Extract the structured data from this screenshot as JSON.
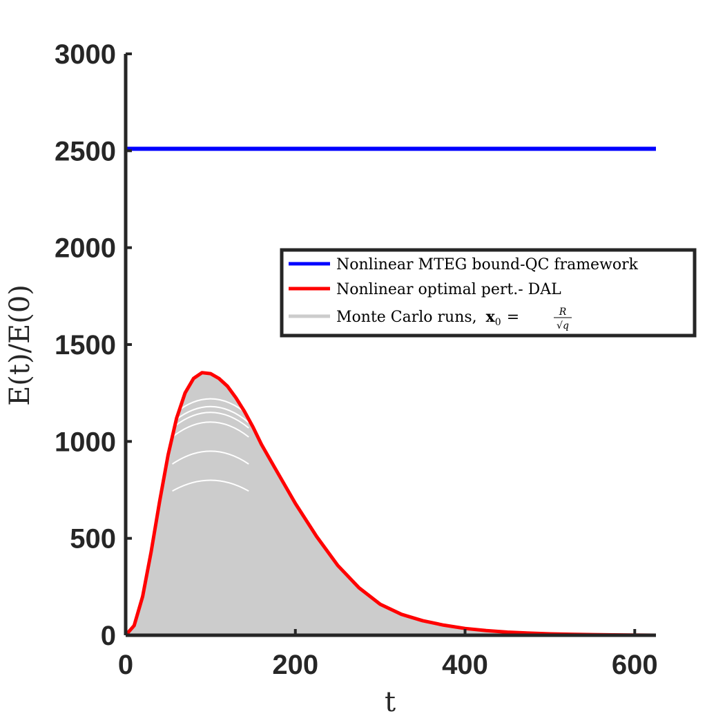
{
  "chart_data": {
    "type": "line",
    "xlabel": "t",
    "ylabel": "E(t)/E(0)",
    "xlim": [
      0,
      625
    ],
    "ylim": [
      0,
      3000
    ],
    "x_ticks": [
      "0",
      "200",
      "400",
      "600"
    ],
    "x_tick_values": [
      0,
      200,
      400,
      600
    ],
    "y_ticks": [
      "0",
      "500",
      "1000",
      "1500",
      "2000",
      "2500",
      "3000"
    ],
    "y_tick_values": [
      0,
      500,
      1000,
      1500,
      2000,
      2500,
      3000
    ],
    "grid": false,
    "legend_position": "center-right",
    "series": [
      {
        "name": "Nonlinear MTEG bound-QC framework",
        "color": "#0000ff",
        "style": "line",
        "x": [
          0,
          625
        ],
        "y": [
          2510,
          2510
        ]
      },
      {
        "name": "Nonlinear optimal pert.- DAL",
        "color": "#ff0000",
        "style": "line",
        "x": [
          0,
          10,
          20,
          30,
          40,
          50,
          60,
          70,
          80,
          90,
          100,
          110,
          120,
          130,
          140,
          150,
          160,
          175,
          200,
          225,
          250,
          275,
          300,
          325,
          350,
          375,
          400,
          425,
          450,
          475,
          500,
          525,
          550,
          575,
          600,
          625
        ],
        "y": [
          0,
          50,
          200,
          430,
          690,
          930,
          1120,
          1250,
          1325,
          1355,
          1350,
          1325,
          1285,
          1225,
          1155,
          1075,
          985,
          870,
          680,
          510,
          360,
          245,
          160,
          108,
          75,
          52,
          35,
          24,
          16,
          11,
          7,
          5,
          3,
          2,
          1,
          0
        ]
      },
      {
        "name": "Monte Carlo runs, x0 = R/√q",
        "color": "#cccccc",
        "style": "area",
        "x": [
          0,
          10,
          20,
          30,
          40,
          50,
          60,
          70,
          80,
          90,
          100,
          110,
          120,
          130,
          140,
          150,
          160,
          175,
          200,
          225,
          250,
          275,
          300,
          325,
          350,
          375,
          400,
          425,
          450,
          475,
          500,
          525,
          550,
          575,
          600,
          625
        ],
        "y": [
          0,
          50,
          200,
          430,
          690,
          930,
          1120,
          1250,
          1325,
          1355,
          1350,
          1325,
          1285,
          1225,
          1155,
          1075,
          985,
          870,
          680,
          510,
          360,
          245,
          160,
          108,
          75,
          52,
          35,
          24,
          16,
          11,
          7,
          5,
          3,
          2,
          1,
          0
        ]
      }
    ],
    "inner_run_peaks": [
      800,
      950,
      1100,
      1150,
      1180,
      1220
    ]
  },
  "legend": {
    "entries": [
      {
        "label": "Nonlinear MTEG bound-QC framework",
        "color": "#0000ff"
      },
      {
        "label": "Nonlinear optimal pert.- DAL",
        "color": "#ff0000"
      },
      {
        "label": "Monte Carlo runs,",
        "math_lhs": "x",
        "math_sub": "0",
        "math_eq": "=",
        "frac_num": "R",
        "frac_den": "√q",
        "color": "#cccccc"
      }
    ]
  }
}
